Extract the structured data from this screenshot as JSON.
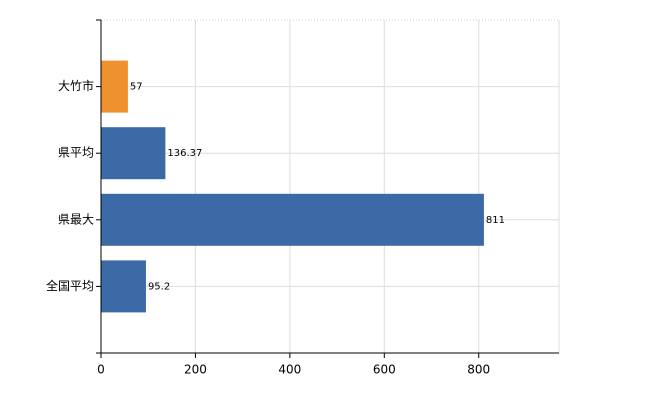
{
  "chart_data": {
    "type": "hbar",
    "categories": [
      "大竹市",
      "県平均",
      "県最大",
      "全国平均"
    ],
    "values": [
      57,
      136.37,
      811,
      95.2
    ],
    "colors": [
      "#f0912f",
      "#3b6aa7",
      "#3b6aa7",
      "#3b6aa7"
    ],
    "xlim": [
      0,
      970
    ],
    "xticks": [
      0,
      200,
      400,
      600,
      800
    ],
    "grid": true
  }
}
